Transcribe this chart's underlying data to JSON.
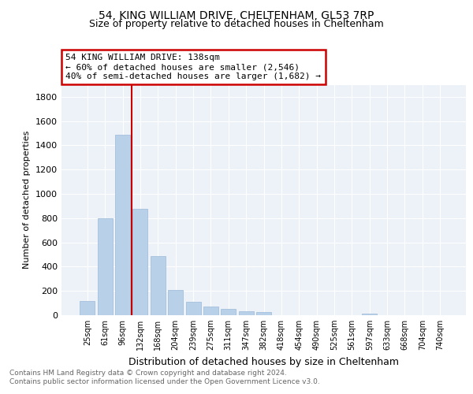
{
  "title": "54, KING WILLIAM DRIVE, CHELTENHAM, GL53 7RP",
  "subtitle": "Size of property relative to detached houses in Cheltenham",
  "xlabel": "Distribution of detached houses by size in Cheltenham",
  "ylabel": "Number of detached properties",
  "categories": [
    "25sqm",
    "61sqm",
    "96sqm",
    "132sqm",
    "168sqm",
    "204sqm",
    "239sqm",
    "275sqm",
    "311sqm",
    "347sqm",
    "382sqm",
    "418sqm",
    "454sqm",
    "490sqm",
    "525sqm",
    "561sqm",
    "597sqm",
    "633sqm",
    "668sqm",
    "704sqm",
    "740sqm"
  ],
  "values": [
    120,
    800,
    1490,
    880,
    490,
    205,
    108,
    70,
    52,
    35,
    28,
    0,
    0,
    0,
    0,
    0,
    15,
    0,
    0,
    0,
    0
  ],
  "bar_color": "#b8d0e8",
  "bar_edgecolor": "#9ab8d8",
  "vline_color": "#cc0000",
  "annotation_text": "54 KING WILLIAM DRIVE: 138sqm\n← 60% of detached houses are smaller (2,546)\n40% of semi-detached houses are larger (1,682) →",
  "annotation_box_color": "#cc0000",
  "ylim": [
    0,
    1900
  ],
  "yticks": [
    0,
    200,
    400,
    600,
    800,
    1000,
    1200,
    1400,
    1600,
    1800
  ],
  "background_color": "#edf2f9",
  "footer_line1": "Contains HM Land Registry data © Crown copyright and database right 2024.",
  "footer_line2": "Contains public sector information licensed under the Open Government Licence v3.0.",
  "title_fontsize": 10,
  "subtitle_fontsize": 9
}
